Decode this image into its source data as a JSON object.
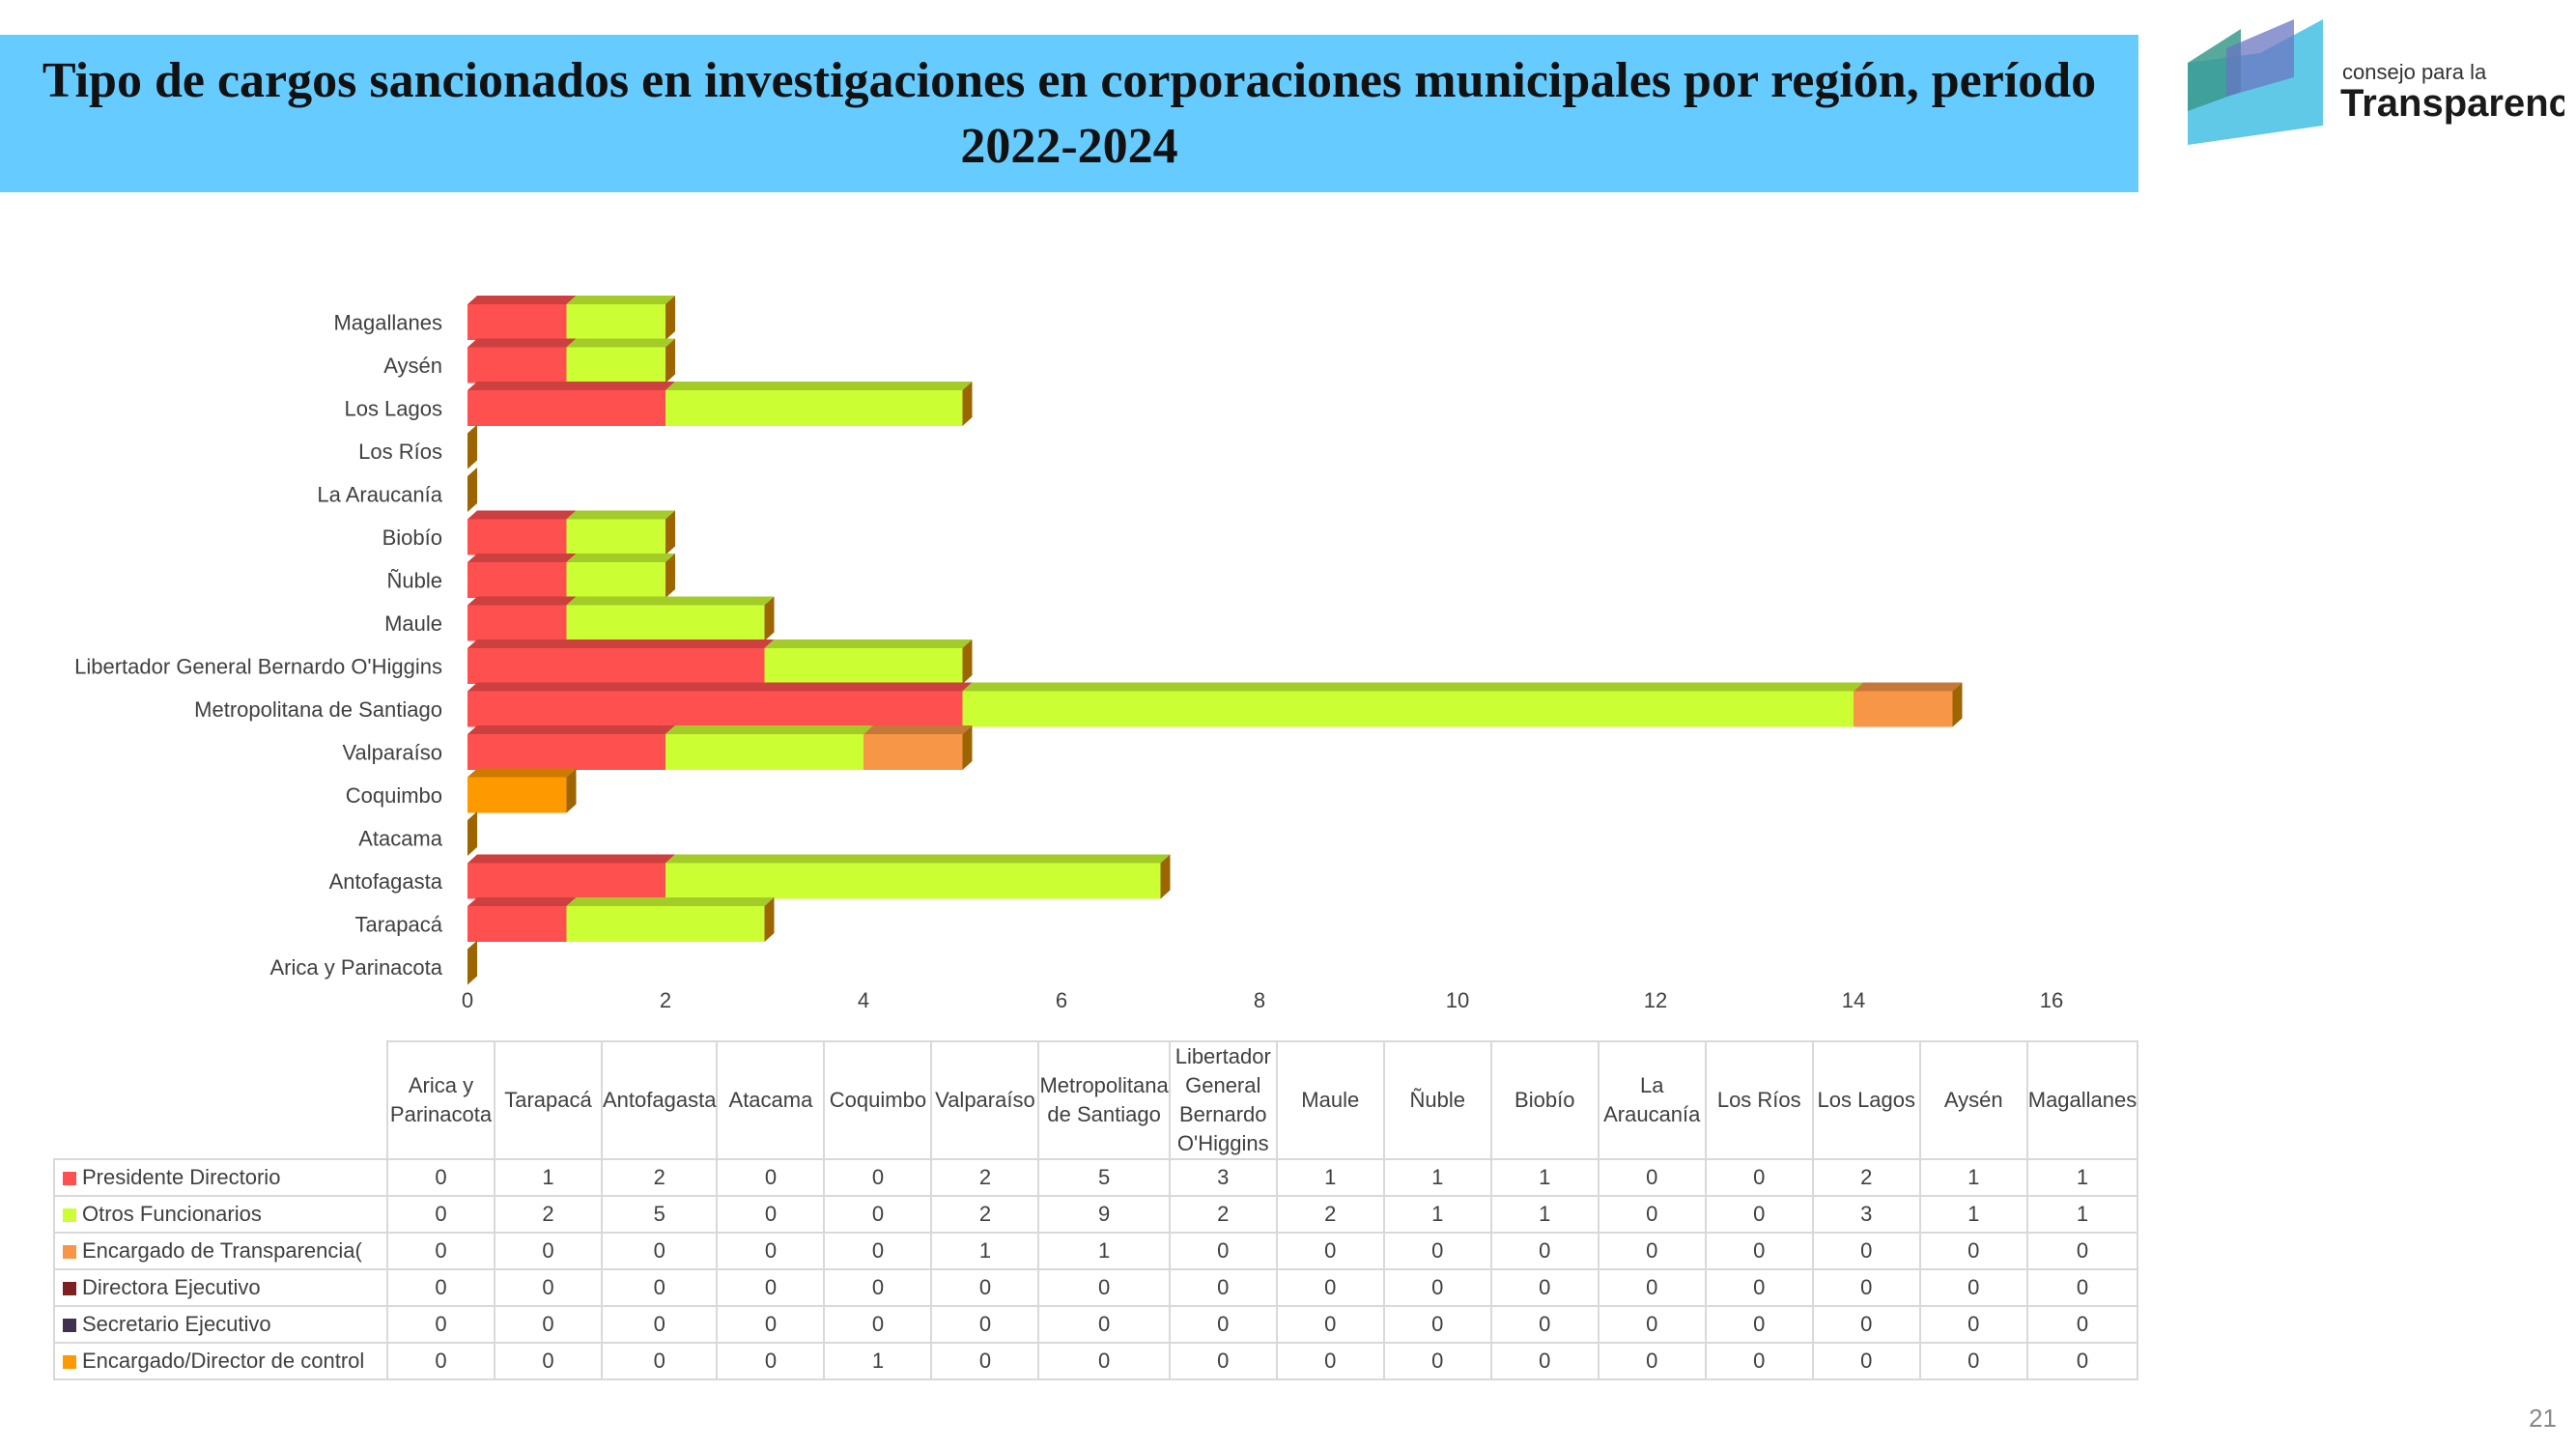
{
  "title": "Tipo de cargos sancionados en investigaciones en corporaciones municipales por región, período 2022-2024",
  "logo": {
    "line1": "consejo para la",
    "line2": "Transparencia"
  },
  "page_number": "21",
  "colors": {
    "banner": "#66ccff",
    "presidente": "#ff5050",
    "otros": "#ccff33",
    "encargado_transparencia": "#f79646",
    "directora": "#7f2020",
    "secretario": "#403151",
    "encargado_control": "#ff9900",
    "depth": "#9c6500"
  },
  "chart_data": {
    "type": "bar",
    "orientation": "horizontal",
    "stacked": true,
    "categories": [
      "Arica y Parinacota",
      "Tarapacá",
      "Antofagasta",
      "Atacama",
      "Coquimbo",
      "Valparaíso",
      "Metropolitana de Santiago",
      "Libertador General Bernardo O'Higgins",
      "Maule",
      "Ñuble",
      "Biobío",
      "La Araucanía",
      "Los Ríos",
      "Los Lagos",
      "Aysén",
      "Magallanes"
    ],
    "table_headers": [
      "Arica y Parinacota",
      "Tarapacá",
      "Antofagasta",
      "Atacama",
      "Coquimbo",
      "Valparaíso",
      "Metropolitana de Santiago",
      "Libertador General Bernardo O'Higgins",
      "Maule",
      "Ñuble",
      "Biobío",
      "La Araucanía",
      "Los Ríos",
      "Los Lagos",
      "Aysén",
      "Magallanes"
    ],
    "series": [
      {
        "name": "Presidente Directorio",
        "color": "#ff5050",
        "values": [
          0,
          1,
          2,
          0,
          0,
          2,
          5,
          3,
          1,
          1,
          1,
          0,
          0,
          2,
          1,
          1
        ]
      },
      {
        "name": "Otros Funcionarios",
        "color": "#ccff33",
        "values": [
          0,
          2,
          5,
          0,
          0,
          2,
          9,
          2,
          2,
          1,
          1,
          0,
          0,
          3,
          1,
          1
        ]
      },
      {
        "name": "Encargado de Transparencia(",
        "color": "#f79646",
        "values": [
          0,
          0,
          0,
          0,
          0,
          1,
          1,
          0,
          0,
          0,
          0,
          0,
          0,
          0,
          0,
          0
        ]
      },
      {
        "name": "Directora Ejecutivo",
        "color": "#7f2020",
        "values": [
          0,
          0,
          0,
          0,
          0,
          0,
          0,
          0,
          0,
          0,
          0,
          0,
          0,
          0,
          0,
          0
        ]
      },
      {
        "name": "Secretario Ejecutivo",
        "color": "#403151",
        "values": [
          0,
          0,
          0,
          0,
          0,
          0,
          0,
          0,
          0,
          0,
          0,
          0,
          0,
          0,
          0,
          0
        ]
      },
      {
        "name": "Encargado/Director de control",
        "color": "#ff9900",
        "values": [
          0,
          0,
          0,
          0,
          1,
          0,
          0,
          0,
          0,
          0,
          0,
          0,
          0,
          0,
          0,
          0
        ]
      }
    ],
    "xlim": [
      0,
      16
    ],
    "xticks": [
      0,
      2,
      4,
      6,
      8,
      10,
      12,
      14,
      16
    ],
    "legend": "data-table-below"
  }
}
